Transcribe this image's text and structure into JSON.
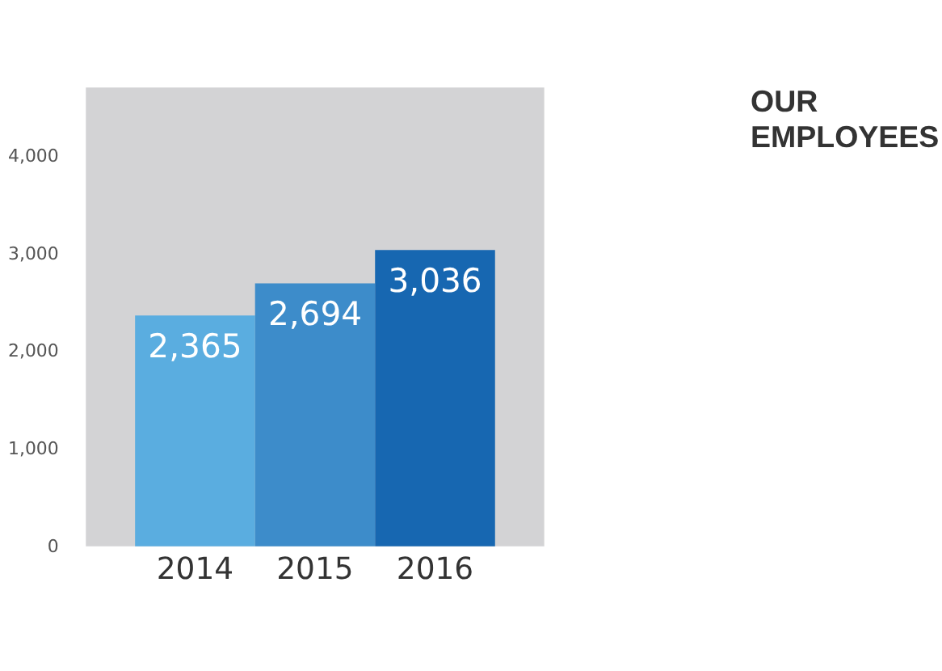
{
  "chart_data": {
    "type": "bar",
    "title": "OUR EMPLOYEES",
    "categories": [
      "2014",
      "2015",
      "2016"
    ],
    "values": [
      2365,
      2694,
      3036
    ],
    "value_labels": [
      "2,365",
      "2,694",
      "3,036"
    ],
    "colors": [
      "#5aade0",
      "#3d8cca",
      "#1767b1"
    ],
    "ylim": [
      0,
      4700
    ],
    "yticks": [
      0,
      {
        "value": 1000,
        "label": "1,000"
      },
      {
        "value": 2000,
        "label": "2,000"
      },
      {
        "value": 3000,
        "label": "3,000"
      },
      {
        "value": 4000,
        "label": "4,000"
      }
    ]
  }
}
